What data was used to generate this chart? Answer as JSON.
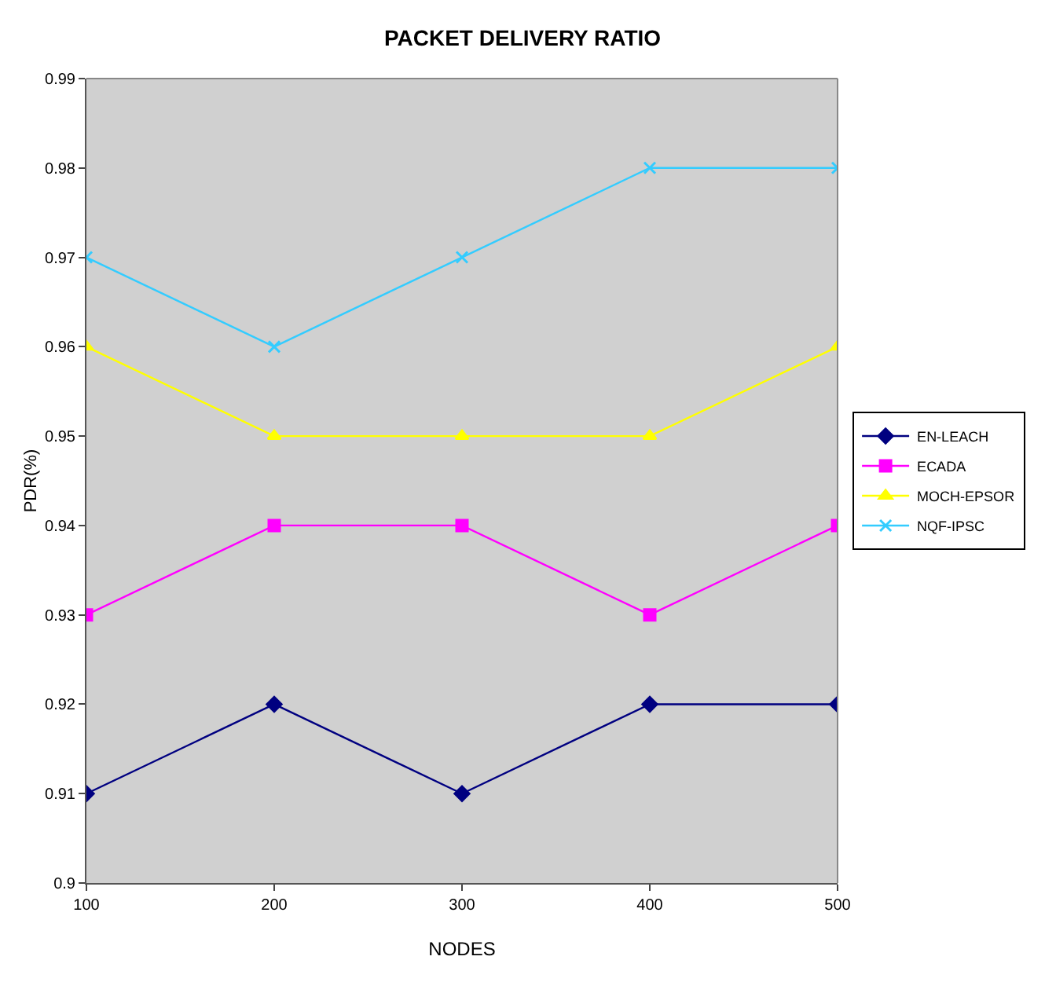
{
  "chart_data": {
    "type": "line",
    "title": "PACKET DELIVERY RATIO",
    "xlabel": "NODES",
    "ylabel": "PDR(%)",
    "x": [
      100,
      200,
      300,
      400,
      500
    ],
    "series": [
      {
        "name": "EN-LEACH",
        "color": "#000080",
        "marker": "diamond",
        "values": [
          0.91,
          0.92,
          0.91,
          0.92,
          0.92
        ]
      },
      {
        "name": "ECADA",
        "color": "#ff00ff",
        "marker": "square",
        "values": [
          0.93,
          0.94,
          0.94,
          0.93,
          0.94
        ]
      },
      {
        "name": "MOCH-EPSOR",
        "color": "#ffff00",
        "marker": "triangle",
        "values": [
          0.96,
          0.95,
          0.95,
          0.95,
          0.96
        ]
      },
      {
        "name": "NQF-IPSC",
        "color": "#33ccff",
        "marker": "cross",
        "values": [
          0.97,
          0.96,
          0.97,
          0.98,
          0.98
        ]
      }
    ],
    "xlim": [
      100,
      500
    ],
    "xticks": [
      100,
      200,
      300,
      400,
      500
    ],
    "ylim": [
      0.9,
      0.99
    ],
    "yticks": [
      0.9,
      0.91,
      0.92,
      0.93,
      0.94,
      0.95,
      0.96,
      0.97,
      0.98,
      0.99
    ],
    "grid": false,
    "legend": "right",
    "line_style": "solid"
  }
}
